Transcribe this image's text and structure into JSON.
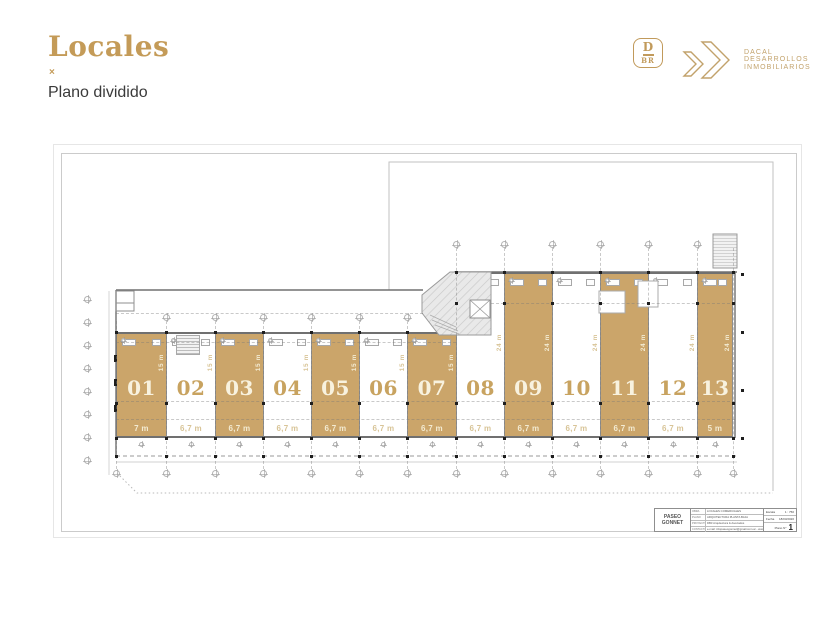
{
  "header": {
    "title": "Locales",
    "marker": "×",
    "subtitle": "Plano dividido"
  },
  "logos": {
    "dbr": {
      "top": "D",
      "bottom": "BR"
    },
    "dacal_lines": [
      "DACAL",
      "DESARROLLOS",
      "INMOBILIARIOS"
    ]
  },
  "colors": {
    "accent": "#C49B58",
    "unit_fill": "#CBA56A",
    "unit_text_on_fill": "#F8F2DF",
    "unit_text_on_white": "#C8A360",
    "wall_line": "#707070"
  },
  "plan": {
    "units": [
      {
        "id": "01",
        "width": "7 m",
        "height": "15 m",
        "filled": true,
        "section": "low"
      },
      {
        "id": "02",
        "width": "6,7 m",
        "height": "15 m",
        "filled": false,
        "section": "low"
      },
      {
        "id": "03",
        "width": "6,7 m",
        "height": "15 m",
        "filled": true,
        "section": "low"
      },
      {
        "id": "04",
        "width": "6,7 m",
        "height": "15 m",
        "filled": false,
        "section": "low"
      },
      {
        "id": "05",
        "width": "6,7 m",
        "height": "15 m",
        "filled": true,
        "section": "low"
      },
      {
        "id": "06",
        "width": "6,7 m",
        "height": "15 m",
        "filled": false,
        "section": "low"
      },
      {
        "id": "07",
        "width": "6,7 m",
        "height": "15 m",
        "filled": true,
        "section": "low"
      },
      {
        "id": "08",
        "width": "6,7 m",
        "height": "24 m",
        "filled": false,
        "section": "tall"
      },
      {
        "id": "09",
        "width": "6,7 m",
        "height": "24 m",
        "filled": true,
        "section": "tall"
      },
      {
        "id": "10",
        "width": "6,7 m",
        "height": "24 m",
        "filled": false,
        "section": "tall"
      },
      {
        "id": "11",
        "width": "6,7 m",
        "height": "24 m",
        "filled": true,
        "section": "tall"
      },
      {
        "id": "12",
        "width": "6,7 m",
        "height": "24 m",
        "filled": false,
        "section": "tall"
      },
      {
        "id": "13",
        "width": "5 m",
        "height": "24 m",
        "filled": true,
        "section": "tall"
      }
    ],
    "titleblock": {
      "brand": "PASEO GONNET",
      "rows": [
        {
          "label": "OBRA",
          "value": "LOCALES COMERCIALES"
        },
        {
          "label": "PLANO",
          "value": "ARQUITECTURA PLANTA BAJA"
        },
        {
          "label": "PROYECTO",
          "value": "DB3 Arquitectura & Asociados"
        },
        {
          "label": "CONTACTO",
          "value": "e-mail: infopaseogonnet@gmail.com.ar - www.paseogonnet.com.ar"
        }
      ],
      "escala_label": "Escala",
      "escala_value": "1 : 750",
      "fecha_label": "Fecha",
      "fecha_value": "18/03/2020",
      "plano_label": "Plano N°",
      "plano_value": "1"
    }
  }
}
